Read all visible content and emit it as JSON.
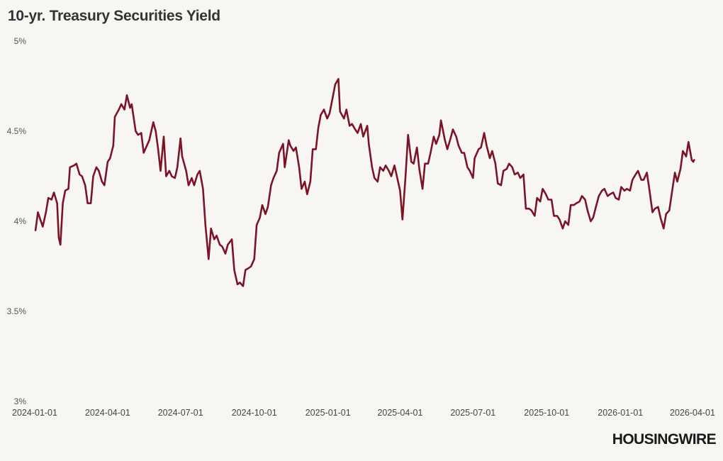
{
  "header": {
    "title": "10-yr. Treasury Securities Yield"
  },
  "brand": {
    "logo_text": "HOUSINGWIRE"
  },
  "colors": {
    "line": "#7a1426",
    "background": "#f8f6f3"
  },
  "chart_data": {
    "type": "line",
    "title": "10-yr. Treasury Securities Yield",
    "xlabel": "",
    "ylabel": "",
    "ylim": [
      3,
      5
    ],
    "xlim": [
      "2024-01-01",
      "2026-04-01"
    ],
    "grid": false,
    "legend": "none",
    "y_ticks": [
      {
        "value": 3,
        "label": "3%"
      },
      {
        "value": 3.5,
        "label": "3.5%"
      },
      {
        "value": 4,
        "label": "4%"
      },
      {
        "value": 4.5,
        "label": "4.5%"
      },
      {
        "value": 5,
        "label": "5%"
      }
    ],
    "x_ticks": [
      "2024-01-01",
      "2024-04-01",
      "2024-07-01",
      "2024-10-01",
      "2025-01-01",
      "2025-04-01",
      "2025-07-01",
      "2025-10-01",
      "2026-01-01",
      "2026-04-01"
    ],
    "series": [
      {
        "points": [
          [
            "2024-01-02",
            3.95
          ],
          [
            "2024-01-05",
            4.05
          ],
          [
            "2024-01-08",
            4.01
          ],
          [
            "2024-01-11",
            3.97
          ],
          [
            "2024-01-15",
            4.05
          ],
          [
            "2024-01-18",
            4.13
          ],
          [
            "2024-01-22",
            4.12
          ],
          [
            "2024-01-25",
            4.16
          ],
          [
            "2024-01-29",
            4.1
          ],
          [
            "2024-01-31",
            3.91
          ],
          [
            "2024-02-02",
            3.87
          ],
          [
            "2024-02-05",
            4.1
          ],
          [
            "2024-02-08",
            4.17
          ],
          [
            "2024-02-12",
            4.18
          ],
          [
            "2024-02-14",
            4.3
          ],
          [
            "2024-02-19",
            4.31
          ],
          [
            "2024-02-22",
            4.32
          ],
          [
            "2024-02-26",
            4.26
          ],
          [
            "2024-02-29",
            4.25
          ],
          [
            "2024-03-04",
            4.2
          ],
          [
            "2024-03-07",
            4.1
          ],
          [
            "2024-03-11",
            4.1
          ],
          [
            "2024-03-14",
            4.25
          ],
          [
            "2024-03-18",
            4.3
          ],
          [
            "2024-03-21",
            4.28
          ],
          [
            "2024-03-25",
            4.22
          ],
          [
            "2024-03-28",
            4.2
          ],
          [
            "2024-04-01",
            4.33
          ],
          [
            "2024-04-04",
            4.35
          ],
          [
            "2024-04-08",
            4.42
          ],
          [
            "2024-04-10",
            4.58
          ],
          [
            "2024-04-15",
            4.62
          ],
          [
            "2024-04-18",
            4.65
          ],
          [
            "2024-04-22",
            4.62
          ],
          [
            "2024-04-25",
            4.7
          ],
          [
            "2024-04-29",
            4.63
          ],
          [
            "2024-05-01",
            4.65
          ],
          [
            "2024-05-06",
            4.5
          ],
          [
            "2024-05-09",
            4.48
          ],
          [
            "2024-05-13",
            4.49
          ],
          [
            "2024-05-16",
            4.38
          ],
          [
            "2024-05-20",
            4.42
          ],
          [
            "2024-05-23",
            4.45
          ],
          [
            "2024-05-28",
            4.55
          ],
          [
            "2024-05-31",
            4.5
          ],
          [
            "2024-06-03",
            4.4
          ],
          [
            "2024-06-06",
            4.28
          ],
          [
            "2024-06-10",
            4.47
          ],
          [
            "2024-06-13",
            4.25
          ],
          [
            "2024-06-17",
            4.28
          ],
          [
            "2024-06-20",
            4.25
          ],
          [
            "2024-06-24",
            4.24
          ],
          [
            "2024-06-27",
            4.3
          ],
          [
            "2024-07-01",
            4.46
          ],
          [
            "2024-07-03",
            4.36
          ],
          [
            "2024-07-08",
            4.28
          ],
          [
            "2024-07-11",
            4.2
          ],
          [
            "2024-07-15",
            4.24
          ],
          [
            "2024-07-18",
            4.2
          ],
          [
            "2024-07-22",
            4.26
          ],
          [
            "2024-07-25",
            4.28
          ],
          [
            "2024-07-29",
            4.18
          ],
          [
            "2024-08-01",
            3.98
          ],
          [
            "2024-08-05",
            3.79
          ],
          [
            "2024-08-08",
            3.96
          ],
          [
            "2024-08-12",
            3.9
          ],
          [
            "2024-08-15",
            3.92
          ],
          [
            "2024-08-19",
            3.87
          ],
          [
            "2024-08-22",
            3.86
          ],
          [
            "2024-08-26",
            3.82
          ],
          [
            "2024-08-29",
            3.87
          ],
          [
            "2024-09-03",
            3.9
          ],
          [
            "2024-09-06",
            3.73
          ],
          [
            "2024-09-10",
            3.65
          ],
          [
            "2024-09-13",
            3.66
          ],
          [
            "2024-09-17",
            3.64
          ],
          [
            "2024-09-20",
            3.73
          ],
          [
            "2024-09-24",
            3.74
          ],
          [
            "2024-09-27",
            3.75
          ],
          [
            "2024-10-01",
            3.79
          ],
          [
            "2024-10-04",
            3.98
          ],
          [
            "2024-10-08",
            4.02
          ],
          [
            "2024-10-11",
            4.09
          ],
          [
            "2024-10-15",
            4.04
          ],
          [
            "2024-10-18",
            4.08
          ],
          [
            "2024-10-22",
            4.2
          ],
          [
            "2024-10-25",
            4.24
          ],
          [
            "2024-10-29",
            4.28
          ],
          [
            "2024-11-01",
            4.38
          ],
          [
            "2024-11-06",
            4.43
          ],
          [
            "2024-11-08",
            4.3
          ],
          [
            "2024-11-13",
            4.45
          ],
          [
            "2024-11-15",
            4.42
          ],
          [
            "2024-11-19",
            4.39
          ],
          [
            "2024-11-22",
            4.41
          ],
          [
            "2024-11-26",
            4.3
          ],
          [
            "2024-11-29",
            4.18
          ],
          [
            "2024-12-03",
            4.22
          ],
          [
            "2024-12-06",
            4.15
          ],
          [
            "2024-12-10",
            4.22
          ],
          [
            "2024-12-13",
            4.4
          ],
          [
            "2024-12-17",
            4.4
          ],
          [
            "2024-12-20",
            4.52
          ],
          [
            "2024-12-23",
            4.59
          ],
          [
            "2024-12-27",
            4.62
          ],
          [
            "2024-12-31",
            4.57
          ],
          [
            "2025-01-03",
            4.6
          ],
          [
            "2025-01-07",
            4.69
          ],
          [
            "2025-01-10",
            4.76
          ],
          [
            "2025-01-14",
            4.79
          ],
          [
            "2025-01-16",
            4.61
          ],
          [
            "2025-01-21",
            4.57
          ],
          [
            "2025-01-24",
            4.62
          ],
          [
            "2025-01-28",
            4.53
          ],
          [
            "2025-01-31",
            4.54
          ],
          [
            "2025-02-04",
            4.51
          ],
          [
            "2025-02-07",
            4.49
          ],
          [
            "2025-02-11",
            4.54
          ],
          [
            "2025-02-14",
            4.47
          ],
          [
            "2025-02-19",
            4.53
          ],
          [
            "2025-02-21",
            4.43
          ],
          [
            "2025-02-25",
            4.3
          ],
          [
            "2025-02-28",
            4.24
          ],
          [
            "2025-03-04",
            4.22
          ],
          [
            "2025-03-07",
            4.3
          ],
          [
            "2025-03-11",
            4.28
          ],
          [
            "2025-03-14",
            4.31
          ],
          [
            "2025-03-18",
            4.28
          ],
          [
            "2025-03-21",
            4.25
          ],
          [
            "2025-03-25",
            4.31
          ],
          [
            "2025-03-28",
            4.25
          ],
          [
            "2025-04-01",
            4.17
          ],
          [
            "2025-04-04",
            4.01
          ],
          [
            "2025-04-08",
            4.26
          ],
          [
            "2025-04-11",
            4.48
          ],
          [
            "2025-04-15",
            4.33
          ],
          [
            "2025-04-18",
            4.32
          ],
          [
            "2025-04-22",
            4.41
          ],
          [
            "2025-04-25",
            4.29
          ],
          [
            "2025-04-29",
            4.18
          ],
          [
            "2025-05-02",
            4.32
          ],
          [
            "2025-05-06",
            4.32
          ],
          [
            "2025-05-09",
            4.38
          ],
          [
            "2025-05-13",
            4.47
          ],
          [
            "2025-05-16",
            4.43
          ],
          [
            "2025-05-20",
            4.48
          ],
          [
            "2025-05-22",
            4.56
          ],
          [
            "2025-05-27",
            4.45
          ],
          [
            "2025-05-30",
            4.4
          ],
          [
            "2025-06-03",
            4.46
          ],
          [
            "2025-06-06",
            4.51
          ],
          [
            "2025-06-10",
            4.47
          ],
          [
            "2025-06-13",
            4.42
          ],
          [
            "2025-06-17",
            4.38
          ],
          [
            "2025-06-20",
            4.38
          ],
          [
            "2025-06-24",
            4.3
          ],
          [
            "2025-06-27",
            4.28
          ],
          [
            "2025-07-01",
            4.24
          ],
          [
            "2025-07-03",
            4.35
          ],
          [
            "2025-07-08",
            4.4
          ],
          [
            "2025-07-11",
            4.41
          ],
          [
            "2025-07-15",
            4.49
          ],
          [
            "2025-07-18",
            4.42
          ],
          [
            "2025-07-22",
            4.35
          ],
          [
            "2025-07-25",
            4.39
          ],
          [
            "2025-07-29",
            4.32
          ],
          [
            "2025-08-01",
            4.21
          ],
          [
            "2025-08-05",
            4.2
          ],
          [
            "2025-08-08",
            4.28
          ],
          [
            "2025-08-12",
            4.29
          ],
          [
            "2025-08-15",
            4.32
          ],
          [
            "2025-08-19",
            4.3
          ],
          [
            "2025-08-22",
            4.26
          ],
          [
            "2025-08-26",
            4.27
          ],
          [
            "2025-08-29",
            4.24
          ],
          [
            "2025-09-02",
            4.26
          ],
          [
            "2025-09-05",
            4.07
          ],
          [
            "2025-09-09",
            4.07
          ],
          [
            "2025-09-12",
            4.06
          ],
          [
            "2025-09-16",
            4.03
          ],
          [
            "2025-09-19",
            4.13
          ],
          [
            "2025-09-23",
            4.11
          ],
          [
            "2025-09-26",
            4.18
          ],
          [
            "2025-09-30",
            4.15
          ],
          [
            "2025-10-03",
            4.12
          ],
          [
            "2025-10-07",
            4.12
          ],
          [
            "2025-10-10",
            4.03
          ],
          [
            "2025-10-14",
            4.03
          ],
          [
            "2025-10-17",
            4.01
          ],
          [
            "2025-10-21",
            3.96
          ],
          [
            "2025-10-24",
            4.0
          ],
          [
            "2025-10-28",
            3.98
          ],
          [
            "2025-10-31",
            4.09
          ],
          [
            "2025-11-04",
            4.09
          ],
          [
            "2025-11-07",
            4.1
          ],
          [
            "2025-11-11",
            4.11
          ],
          [
            "2025-11-14",
            4.14
          ],
          [
            "2025-11-18",
            4.12
          ],
          [
            "2025-11-21",
            4.06
          ],
          [
            "2025-11-25",
            4.0
          ],
          [
            "2025-11-28",
            4.02
          ],
          [
            "2025-12-02",
            4.09
          ],
          [
            "2025-12-05",
            4.14
          ],
          [
            "2025-12-09",
            4.17
          ],
          [
            "2025-12-12",
            4.18
          ],
          [
            "2025-12-16",
            4.14
          ],
          [
            "2025-12-19",
            4.15
          ],
          [
            "2025-12-23",
            4.16
          ],
          [
            "2025-12-26",
            4.13
          ],
          [
            "2025-12-30",
            4.12
          ],
          [
            "2026-01-02",
            4.19
          ],
          [
            "2026-01-06",
            4.17
          ],
          [
            "2026-01-09",
            4.18
          ],
          [
            "2026-01-13",
            4.17
          ],
          [
            "2026-01-16",
            4.23
          ],
          [
            "2026-01-20",
            4.26
          ],
          [
            "2026-01-23",
            4.28
          ],
          [
            "2026-01-27",
            4.23
          ],
          [
            "2026-01-30",
            4.23
          ],
          [
            "2026-02-03",
            4.27
          ],
          [
            "2026-02-06",
            4.18
          ],
          [
            "2026-02-10",
            4.05
          ],
          [
            "2026-02-13",
            4.07
          ],
          [
            "2026-02-17",
            4.08
          ],
          [
            "2026-02-20",
            4.02
          ],
          [
            "2026-02-24",
            3.96
          ],
          [
            "2026-02-27",
            4.04
          ],
          [
            "2026-03-03",
            4.06
          ],
          [
            "2026-03-06",
            4.15
          ],
          [
            "2026-03-10",
            4.27
          ],
          [
            "2026-03-13",
            4.22
          ],
          [
            "2026-03-17",
            4.29
          ],
          [
            "2026-03-20",
            4.39
          ],
          [
            "2026-03-24",
            4.36
          ],
          [
            "2026-03-27",
            4.44
          ],
          [
            "2026-03-31",
            4.34
          ],
          [
            "2026-04-02",
            4.33
          ],
          [
            "2026-04-03",
            4.34
          ]
        ]
      }
    ]
  }
}
